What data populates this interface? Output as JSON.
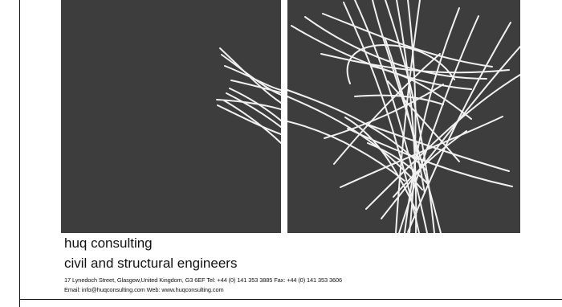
{
  "artwork": {
    "left_panel": {
      "description_icon": "white-lines-artwork-left",
      "background": "#3d3d3d",
      "stroke": "#f1f1f1"
    },
    "right_panel": {
      "description_icon": "white-lines-artwork-right",
      "background": "#3d3d3d",
      "stroke": "#f1f1f1"
    }
  },
  "company": {
    "name": "huq consulting",
    "tagline": "civil and structural engineers",
    "address_line": "17 Lynedoch Street, Glasgow,United Kingdom, G3 6EF  Tel: +44 (0) 141 353 3885  Fax: +44 (0) 141 353 3606",
    "web_line": "Email: info@huqconsulting.com  Web: www.huqconsulting.com"
  },
  "colors": {
    "text": "#111111",
    "panel": "#3d3d3d",
    "line": "#f1f1f1",
    "border": "#111111"
  }
}
